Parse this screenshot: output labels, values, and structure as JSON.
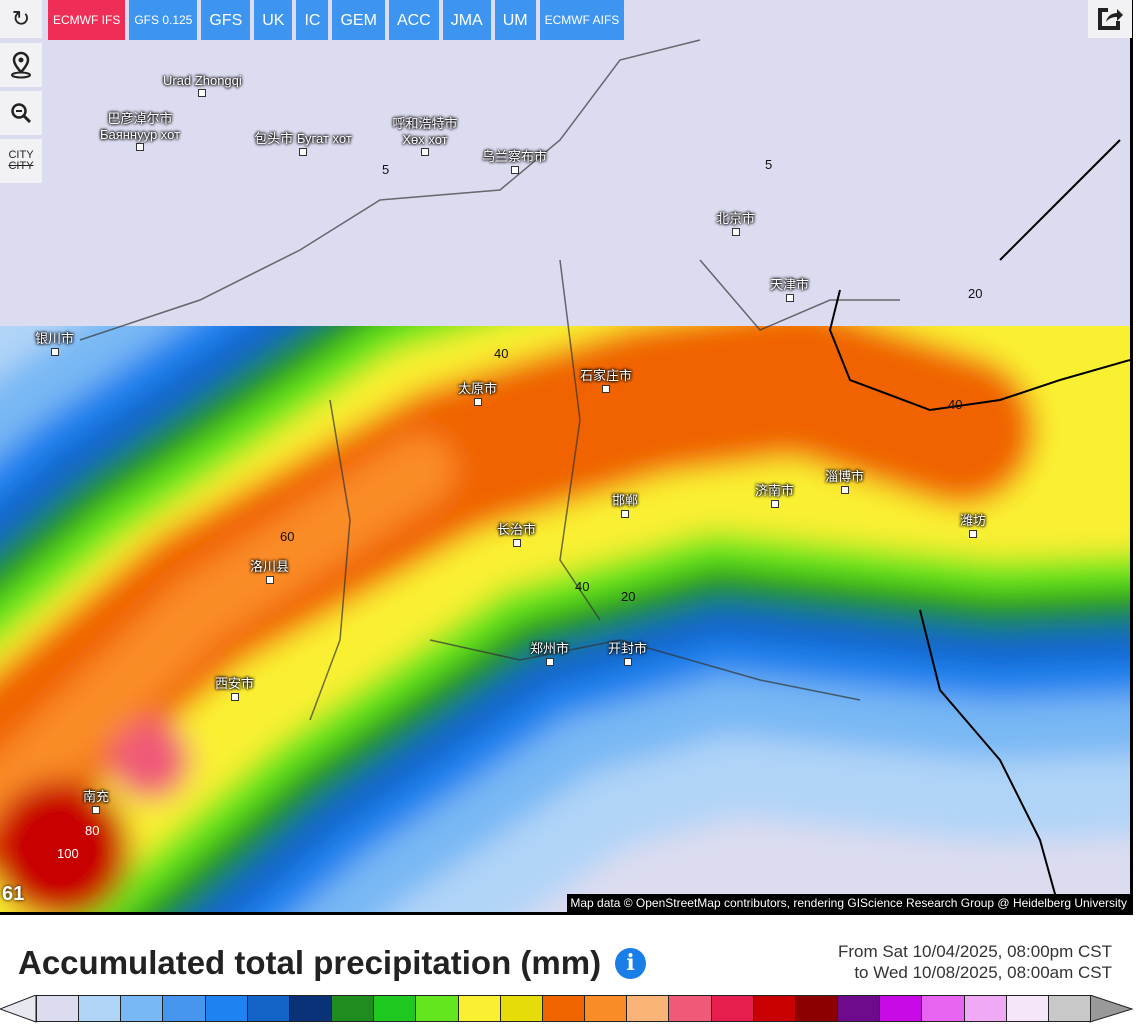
{
  "models": [
    {
      "label": "ECMWF IFS",
      "active": true
    },
    {
      "label": "GFS 0.125"
    },
    {
      "label": "GFS"
    },
    {
      "label": "UK"
    },
    {
      "label": "IC"
    },
    {
      "label": "GEM"
    },
    {
      "label": "ACC"
    },
    {
      "label": "JMA"
    },
    {
      "label": "UM"
    },
    {
      "label": "ECMWF AIFS"
    }
  ],
  "side_controls": {
    "refresh": "refresh-icon",
    "location": "map-pin-icon",
    "zoom_out": "zoom-out-icon",
    "city_top": "CITY",
    "city_bottom": "CITY"
  },
  "share_icon": "share-icon",
  "map": {
    "cities": [
      "Urad Zhongqi",
      "巴彦淖尔市 Баяннуур хот",
      "包头市 Бугат хот",
      "呼和浩特市 Хөх хот",
      "乌兰察布市",
      "北京市",
      "天津市",
      "石家庄市",
      "太原市",
      "济南市",
      "郑州市",
      "开封市",
      "西安市",
      "淄博市",
      "长治市",
      "邯郸",
      "潍坊",
      "银川市",
      "洛川县",
      "南充"
    ],
    "contours": [
      "5",
      "5",
      "20",
      "40",
      "40",
      "60",
      "40",
      "20",
      "100",
      "80"
    ],
    "frame_number": "61",
    "attribution": "Map data © OpenStreetMap contributors, rendering GIScience Research Group @ Heidelberg University"
  },
  "title": "Accumulated total precipitation (mm)",
  "info_icon": "info-icon",
  "range": {
    "from": "From Sat 10/04/2025, 08:00pm CST",
    "to": "to Wed 10/08/2025, 08:00am CST"
  },
  "legend_colors": [
    "#dcdcf0",
    "#b0d4f8",
    "#78b8f4",
    "#4696f0",
    "#1e82f0",
    "#1464c8",
    "#0a3278",
    "#1e8c1e",
    "#1ec81e",
    "#64e61e",
    "#faf032",
    "#e6dc0a",
    "#f06400",
    "#fa8c28",
    "#fab478",
    "#f05a78",
    "#e61e50",
    "#c80000",
    "#8c0000",
    "#6e0a8c",
    "#c80ae6",
    "#e664f0",
    "#f0aaf5",
    "#f5e6fa",
    "#c8c8c8"
  ]
}
